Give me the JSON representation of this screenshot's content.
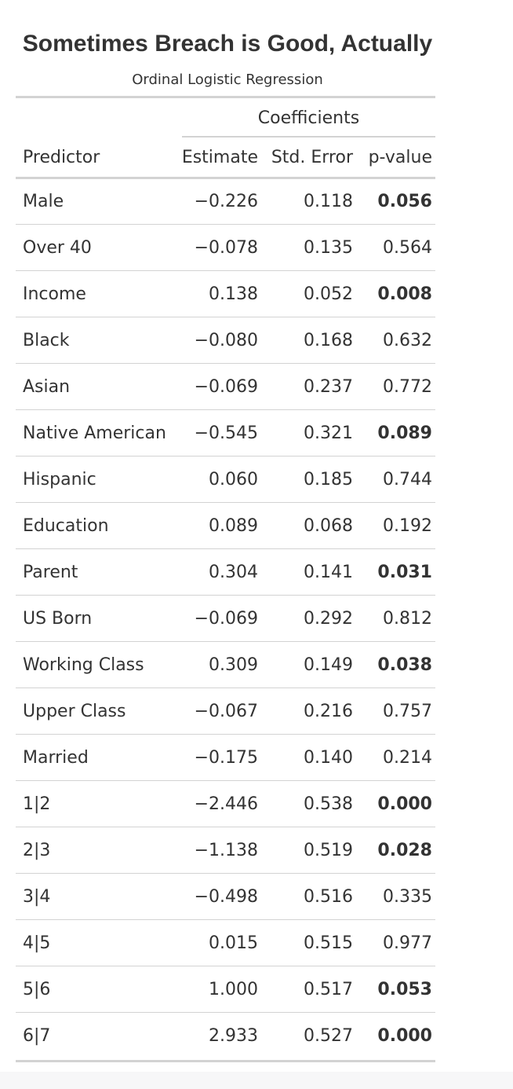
{
  "title": "Sometimes Breach is Good, Actually",
  "subtitle": "Ordinal Logistic Regression",
  "spanner": "Coefficients",
  "columns": {
    "predictor": "Predictor",
    "estimate": "Estimate",
    "std_error": "Std. Error",
    "p_value": "p-value"
  },
  "rows": [
    {
      "predictor": "Male",
      "estimate": "−0.226",
      "std_error": "0.118",
      "p_value": "0.056",
      "significant": true
    },
    {
      "predictor": "Over 40",
      "estimate": "−0.078",
      "std_error": "0.135",
      "p_value": "0.564",
      "significant": false
    },
    {
      "predictor": "Income",
      "estimate": "0.138",
      "std_error": "0.052",
      "p_value": "0.008",
      "significant": true
    },
    {
      "predictor": "Black",
      "estimate": "−0.080",
      "std_error": "0.168",
      "p_value": "0.632",
      "significant": false
    },
    {
      "predictor": "Asian",
      "estimate": "−0.069",
      "std_error": "0.237",
      "p_value": "0.772",
      "significant": false
    },
    {
      "predictor": "Native American",
      "estimate": "−0.545",
      "std_error": "0.321",
      "p_value": "0.089",
      "significant": true
    },
    {
      "predictor": "Hispanic",
      "estimate": "0.060",
      "std_error": "0.185",
      "p_value": "0.744",
      "significant": false
    },
    {
      "predictor": "Education",
      "estimate": "0.089",
      "std_error": "0.068",
      "p_value": "0.192",
      "significant": false
    },
    {
      "predictor": "Parent",
      "estimate": "0.304",
      "std_error": "0.141",
      "p_value": "0.031",
      "significant": true
    },
    {
      "predictor": "US Born",
      "estimate": "−0.069",
      "std_error": "0.292",
      "p_value": "0.812",
      "significant": false
    },
    {
      "predictor": "Working Class",
      "estimate": "0.309",
      "std_error": "0.149",
      "p_value": "0.038",
      "significant": true
    },
    {
      "predictor": "Upper Class",
      "estimate": "−0.067",
      "std_error": "0.216",
      "p_value": "0.757",
      "significant": false
    },
    {
      "predictor": "Married",
      "estimate": "−0.175",
      "std_error": "0.140",
      "p_value": "0.214",
      "significant": false
    },
    {
      "predictor": "1|2",
      "estimate": "−2.446",
      "std_error": "0.538",
      "p_value": "0.000",
      "significant": true
    },
    {
      "predictor": "2|3",
      "estimate": "−1.138",
      "std_error": "0.519",
      "p_value": "0.028",
      "significant": true
    },
    {
      "predictor": "3|4",
      "estimate": "−0.498",
      "std_error": "0.516",
      "p_value": "0.335",
      "significant": false
    },
    {
      "predictor": "4|5",
      "estimate": "0.015",
      "std_error": "0.515",
      "p_value": "0.977",
      "significant": false
    },
    {
      "predictor": "5|6",
      "estimate": "1.000",
      "std_error": "0.517",
      "p_value": "0.053",
      "significant": true
    },
    {
      "predictor": "6|7",
      "estimate": "2.933",
      "std_error": "0.527",
      "p_value": "0.000",
      "significant": true
    }
  ],
  "colors": {
    "text": "#333333",
    "rule": "#d3d3d3"
  }
}
